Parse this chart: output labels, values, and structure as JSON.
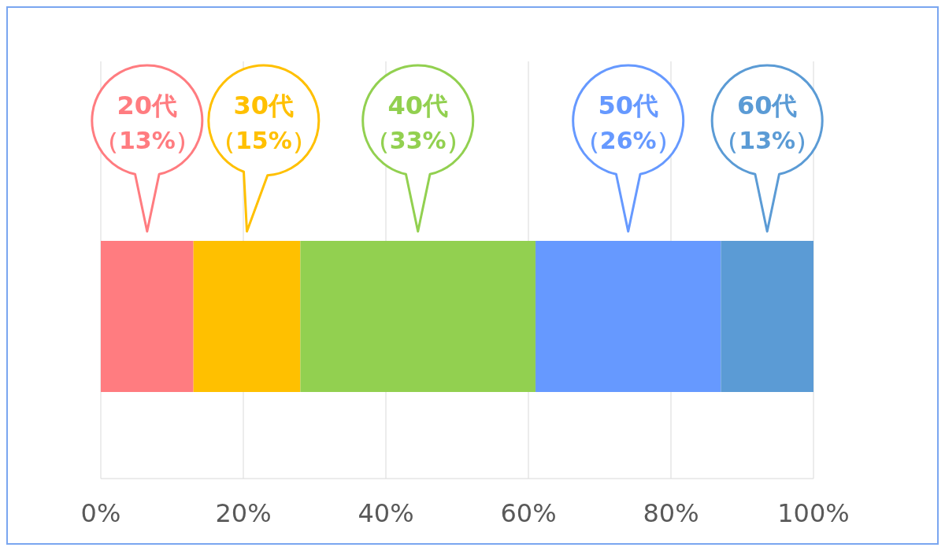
{
  "chart_data": {
    "type": "bar",
    "orientation": "horizontal",
    "stacked": true,
    "categories": [
      null
    ],
    "series": [
      {
        "name": "20代",
        "color": "#ff7c80",
        "values": [
          13
        ]
      },
      {
        "name": "30代",
        "color": "#ffc000",
        "values": [
          15
        ]
      },
      {
        "name": "40代",
        "color": "#92d050",
        "values": [
          33
        ]
      },
      {
        "name": "50代",
        "color": "#6699ff",
        "values": [
          26
        ]
      },
      {
        "name": "60代",
        "color": "#5b9bd5",
        "values": [
          13
        ]
      }
    ],
    "annotations": [
      "（13%）",
      "（15%）",
      "（33%）",
      "（26%）",
      "（13%）"
    ],
    "xlim": [
      0,
      100
    ],
    "xticks": [
      {
        "value": 0,
        "label": "0%"
      },
      {
        "value": 20,
        "label": "20%"
      },
      {
        "value": 40,
        "label": "40%"
      },
      {
        "value": 60,
        "label": "60%"
      },
      {
        "value": 80,
        "label": "80%"
      },
      {
        "value": 100,
        "label": "100%"
      }
    ],
    "grid": "x"
  }
}
